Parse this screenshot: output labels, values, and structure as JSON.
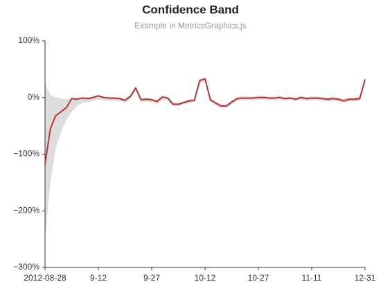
{
  "chart_data": {
    "type": "line",
    "title": "Confidence Band",
    "subtitle": "Example in MetricsGraphics.js",
    "categories": [
      "2012-08-28",
      null,
      null,
      null,
      null,
      null,
      null,
      null,
      null,
      null,
      "9-12",
      null,
      null,
      null,
      null,
      null,
      null,
      null,
      null,
      null,
      "9-27",
      null,
      null,
      null,
      null,
      null,
      null,
      null,
      null,
      null,
      "10-12",
      null,
      null,
      null,
      null,
      null,
      null,
      null,
      null,
      null,
      "10-27",
      null,
      null,
      null,
      null,
      null,
      null,
      null,
      null,
      null,
      "11-11",
      null,
      null,
      null,
      null,
      null,
      null,
      null,
      null,
      null,
      "12-31"
    ],
    "series": [
      {
        "color": "#b83232",
        "values": [
          -118,
          -55,
          -32,
          -25,
          -18,
          -2,
          -3,
          -1,
          -2,
          0,
          3,
          0,
          -1,
          -1,
          -2,
          -5,
          2,
          17,
          -4,
          -3,
          -4,
          -7,
          1,
          -1,
          -12,
          -12,
          -9,
          -6,
          -5,
          30,
          33,
          -4,
          -10,
          -15,
          -15,
          -8,
          -2,
          -1,
          -1,
          -1,
          0,
          0,
          -1,
          -1,
          0,
          -2,
          -1,
          -3,
          0,
          -2,
          -1,
          -1,
          -2,
          -3,
          -2,
          -3,
          -6,
          -3,
          -3,
          -2,
          32
        ]
      }
    ],
    "band": {
      "color": "#dcdcdc",
      "upper": [
        25,
        5,
        0,
        -2,
        -3,
        0,
        0,
        1,
        0,
        2,
        4,
        2,
        1,
        1,
        0,
        -2,
        5,
        19,
        -1,
        0,
        -1,
        -4,
        3,
        1,
        -8,
        -9,
        -6,
        -3,
        -2,
        33,
        35,
        -1,
        -7,
        -12,
        -12,
        -5,
        1,
        2,
        2,
        2,
        3,
        3,
        2,
        2,
        3,
        1,
        2,
        0,
        3,
        1,
        2,
        2,
        1,
        0,
        1,
        0,
        -2,
        0,
        0,
        1,
        34
      ],
      "lower": [
        -250,
        -150,
        -90,
        -60,
        -40,
        -25,
        -15,
        -10,
        -8,
        -6,
        -4,
        -5,
        -6,
        -6,
        -7,
        -9,
        -3,
        12,
        -8,
        -7,
        -8,
        -11,
        -4,
        -5,
        -15,
        -15,
        -12,
        -10,
        -9,
        25,
        29,
        -8,
        -14,
        -18,
        -18,
        -12,
        -6,
        -5,
        -5,
        -5,
        -4,
        -4,
        -5,
        -5,
        -4,
        -6,
        -5,
        -7,
        -4,
        -6,
        -5,
        -5,
        -6,
        -7,
        -6,
        -7,
        -10,
        -7,
        -7,
        -6,
        28
      ]
    },
    "ylim": [
      -300,
      100
    ],
    "yticks": [
      {
        "value": 100,
        "label": "100%"
      },
      {
        "value": 0,
        "label": "0%"
      },
      {
        "value": -100,
        "label": "−100%"
      },
      {
        "value": -200,
        "label": "−200%"
      },
      {
        "value": -300,
        "label": "−300%"
      }
    ]
  }
}
